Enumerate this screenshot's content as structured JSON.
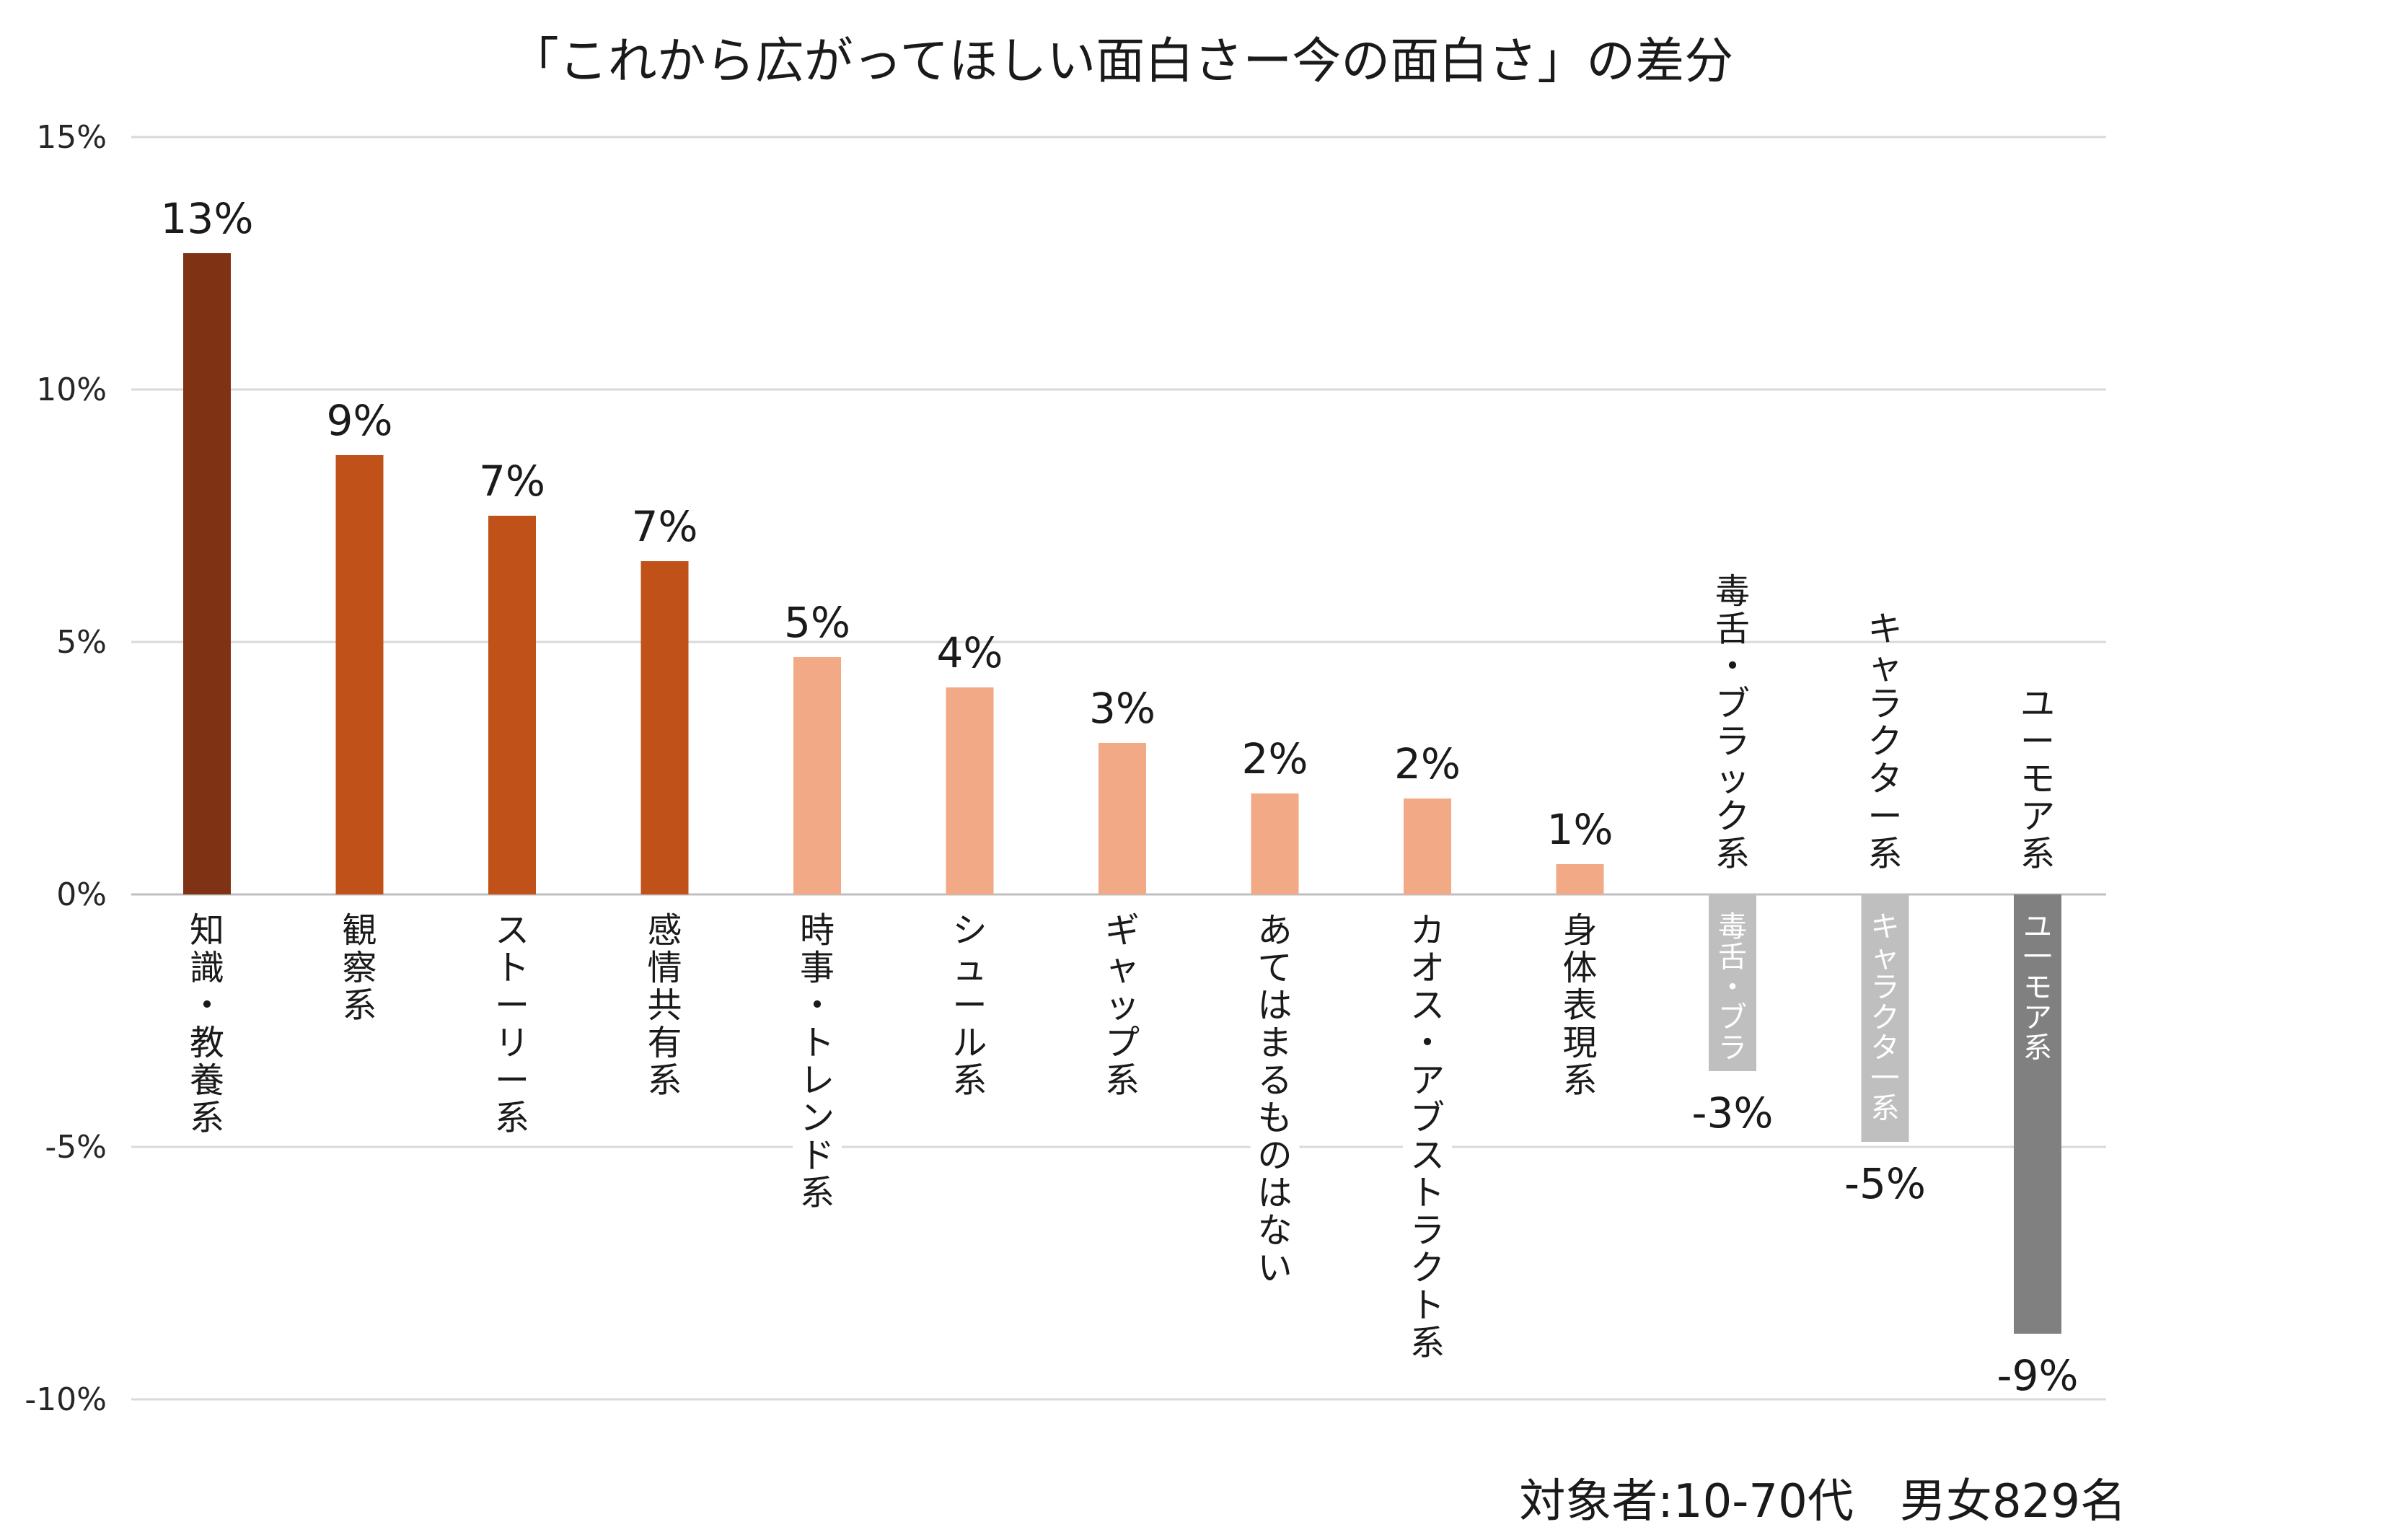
{
  "chart_data": {
    "type": "bar",
    "title": "「これから広がってほしい面白さー今の面白さ」の差分",
    "categories": [
      "知識・教養系",
      "観察系",
      "ストーリー系",
      "感情共有系",
      "時事・トレンド系",
      "シュール系",
      "ギャップ系",
      "あてはまるものはない",
      "カオス・アブストラクト系",
      "身体表現系",
      "毒舌・ブラック系",
      "キャラクター系",
      "ユーモア系"
    ],
    "values": [
      12.7,
      8.7,
      7.5,
      6.6,
      4.7,
      4.1,
      3.0,
      2.0,
      1.9,
      0.6,
      -3.5,
      -4.9,
      -8.7
    ],
    "value_labels": [
      "13%",
      "9%",
      "7%",
      "7%",
      "5%",
      "4%",
      "3%",
      "2%",
      "2%",
      "1%",
      "-3%",
      "-5%",
      "-9%"
    ],
    "inside_labels": [
      "",
      "",
      "",
      "",
      "",
      "",
      "",
      "",
      "",
      "",
      "毒舌・ブラ",
      "キャラクタ一系",
      "ユ一モア系"
    ],
    "colors": [
      "#7f3214",
      "#bf5119",
      "#bf5119",
      "#bf5119",
      "#f1aa85",
      "#f1aa85",
      "#f1aa85",
      "#f1aa85",
      "#f1aa85",
      "#f1aa85",
      "#bfbfbf",
      "#bfbfbf",
      "#808080"
    ],
    "ylim": [
      -10,
      15
    ],
    "yticks": [
      15,
      10,
      5,
      0,
      -5,
      -10
    ],
    "ytick_labels": [
      "15%",
      "10%",
      "5%",
      "0%",
      "-5%",
      "-10%"
    ],
    "xlabel": "",
    "ylabel": "",
    "grid": true,
    "legend": "none",
    "note": "対象者:10-70代　男女829名"
  }
}
